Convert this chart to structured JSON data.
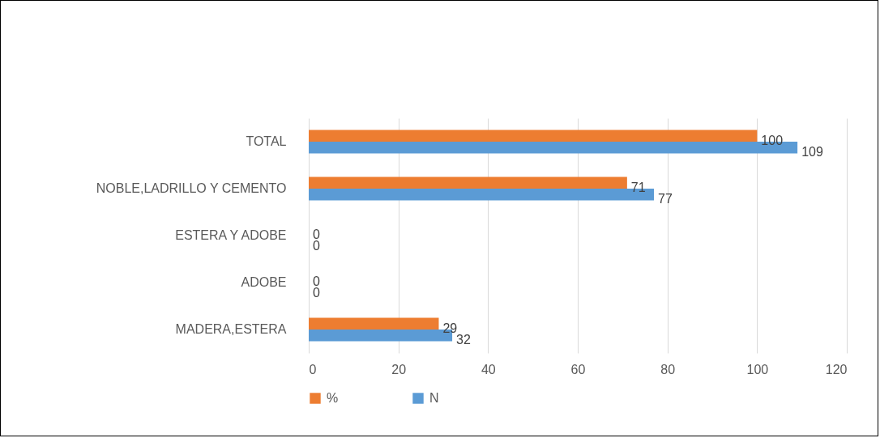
{
  "chart_data": {
    "type": "bar",
    "orientation": "horizontal",
    "categories": [
      "TOTAL",
      "NOBLE,LADRILLO Y CEMENTO",
      "ESTERA Y ADOBE",
      "ADOBE",
      "MADERA,ESTERA"
    ],
    "series": [
      {
        "name": "%",
        "color": "#ed7d31",
        "values": [
          100,
          71,
          0,
          0,
          29
        ]
      },
      {
        "name": "N",
        "color": "#5b9bd5",
        "values": [
          109,
          77,
          0,
          0,
          32
        ]
      }
    ],
    "xlim": [
      0,
      120
    ],
    "xticks": [
      0,
      20,
      40,
      60,
      80,
      100,
      120
    ],
    "grid": "x",
    "legend": "bottom",
    "data_labels": true
  }
}
